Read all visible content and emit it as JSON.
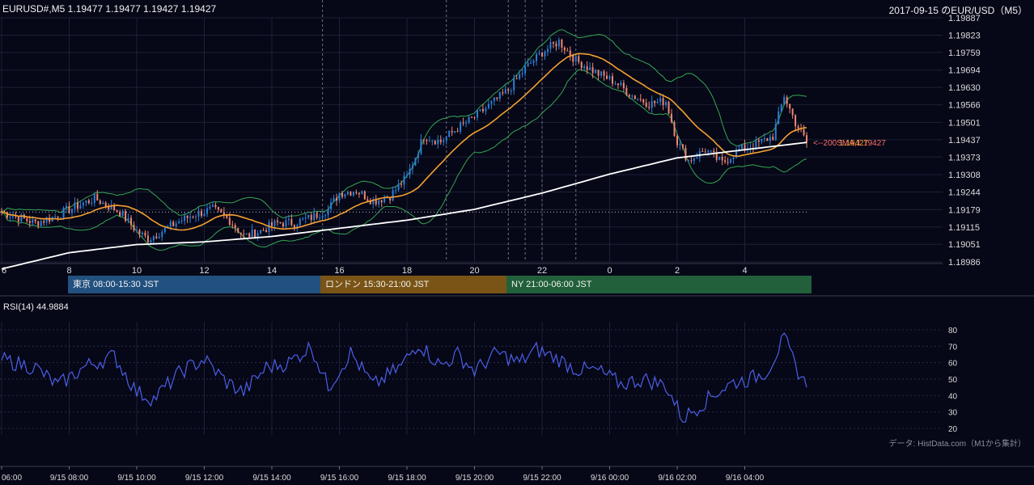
{
  "header": {
    "symbol_line": "EURUSD#,M5 1.19477 1.19477 1.19427 1.19427",
    "title_right": "2017-09-15 のEUR/USD（M5）"
  },
  "price_axis": {
    "labels": [
      "1.19887",
      "1.19823",
      "1.19759",
      "1.19694",
      "1.19630",
      "1.19566",
      "1.19501",
      "1.19437",
      "1.19373",
      "1.19308",
      "1.19244",
      "1.19179",
      "1.19115",
      "1.19051",
      "1.18986"
    ],
    "min": 1.18986,
    "max": 1.19887
  },
  "time_axis_top": [
    "6",
    "8",
    "10",
    "12",
    "14",
    "16",
    "18",
    "20",
    "22",
    "0",
    "2",
    "4"
  ],
  "time_axis_bottom": [
    "06:00",
    "9/15 08:00",
    "9/15 10:00",
    "9/15 12:00",
    "9/15 14:00",
    "9/15 16:00",
    "9/15 18:00",
    "9/15 20:00",
    "9/15 22:00",
    "9/16 00:00",
    "9/16 02:00",
    "9/16 04:00"
  ],
  "sessions": {
    "tokyo": "東京 08:00-15:30 JST",
    "london": "ロンドン 15:30-21:00 JST",
    "ny": "NY 21:00-06:00 JST"
  },
  "ma_label": "<--200SMA,1.19427",
  "last_price_label": "1.19427",
  "rsi": {
    "label": "RSI(14) 44.9884",
    "axis_labels": [
      "80",
      "70",
      "60",
      "50",
      "40",
      "30",
      "20"
    ],
    "min": 20,
    "max": 80
  },
  "credit": "データ: HistData.com（M1から集計）",
  "colors": {
    "background": "#060717",
    "bull": "#2d7fd6",
    "bear": "#f08872",
    "bollinger": "#33a852",
    "sma20": "#f5a02e",
    "sma200": "#ffffff",
    "rsi": "#4c5fe8",
    "tokyo": "#22507f",
    "london": "#7a5416",
    "ny": "#21603a"
  },
  "chart_data": {
    "type": "candlestick",
    "symbol": "EURUSD",
    "timeframe": "M5",
    "last": {
      "open": 1.19477,
      "high": 1.19477,
      "low": 1.19427,
      "close": 1.19427
    },
    "x_start": "9/15 06:00",
    "x_end": "9/16 05:50",
    "ylim": [
      1.18986,
      1.19887
    ],
    "close_anchors": [
      [
        "06:00",
        1.1917
      ],
      [
        "07:00",
        1.1913
      ],
      [
        "07:30",
        1.1915
      ],
      [
        "08:00",
        1.1918
      ],
      [
        "08:45",
        1.1922
      ],
      [
        "09:30",
        1.1917
      ],
      [
        "10:00",
        1.191
      ],
      [
        "10:20",
        1.1907
      ],
      [
        "10:45",
        1.191
      ],
      [
        "11:10",
        1.1913
      ],
      [
        "11:40",
        1.1916
      ],
      [
        "12:15",
        1.1918
      ],
      [
        "12:45",
        1.1914
      ],
      [
        "13:10",
        1.1908
      ],
      [
        "13:40",
        1.191
      ],
      [
        "14:10",
        1.1913
      ],
      [
        "14:40",
        1.1913
      ],
      [
        "15:10",
        1.1915
      ],
      [
        "15:40",
        1.1918
      ],
      [
        "16:00",
        1.1924
      ],
      [
        "16:30",
        1.1925
      ],
      [
        "17:00",
        1.1921
      ],
      [
        "17:30",
        1.1923
      ],
      [
        "18:00",
        1.193
      ],
      [
        "18:30",
        1.1945
      ],
      [
        "19:00",
        1.1943
      ],
      [
        "19:30",
        1.1948
      ],
      [
        "20:00",
        1.1952
      ],
      [
        "20:30",
        1.1957
      ],
      [
        "21:00",
        1.1962
      ],
      [
        "21:30",
        1.197
      ],
      [
        "22:00",
        1.1976
      ],
      [
        "22:30",
        1.198
      ],
      [
        "23:00",
        1.1973
      ],
      [
        "23:40",
        1.1968
      ],
      [
        "00:10",
        1.1965
      ],
      [
        "00:40",
        1.196
      ],
      [
        "01:10",
        1.1957
      ],
      [
        "01:40",
        1.1958
      ],
      [
        "02:00",
        1.1943
      ],
      [
        "02:20",
        1.1936
      ],
      [
        "02:50",
        1.194
      ],
      [
        "03:20",
        1.1935
      ],
      [
        "03:50",
        1.194
      ],
      [
        "04:20",
        1.1942
      ],
      [
        "04:50",
        1.1945
      ],
      [
        "05:10",
        1.196
      ],
      [
        "05:30",
        1.195
      ],
      [
        "05:50",
        1.19427
      ]
    ],
    "sma200_anchors": [
      [
        "06:00",
        1.1896
      ],
      [
        "08:00",
        1.1902
      ],
      [
        "10:00",
        1.1905
      ],
      [
        "12:00",
        1.1906
      ],
      [
        "14:00",
        1.1908
      ],
      [
        "16:00",
        1.1911
      ],
      [
        "18:00",
        1.1914
      ],
      [
        "20:00",
        1.1918
      ],
      [
        "22:00",
        1.1924
      ],
      [
        "00:00",
        1.1931
      ],
      [
        "02:00",
        1.1937
      ],
      [
        "04:00",
        1.194
      ],
      [
        "05:50",
        1.19427
      ]
    ],
    "rsi_anchors": [
      [
        "06:00",
        62
      ],
      [
        "07:00",
        57
      ],
      [
        "07:40",
        46
      ],
      [
        "08:30",
        58
      ],
      [
        "09:20",
        64
      ],
      [
        "10:00",
        42
      ],
      [
        "10:30",
        38
      ],
      [
        "11:20",
        55
      ],
      [
        "12:00",
        62
      ],
      [
        "12:40",
        48
      ],
      [
        "13:10",
        42
      ],
      [
        "13:50",
        57
      ],
      [
        "14:30",
        60
      ],
      [
        "15:10",
        70
      ],
      [
        "15:40",
        45
      ],
      [
        "16:20",
        66
      ],
      [
        "17:00",
        46
      ],
      [
        "17:50",
        58
      ],
      [
        "18:20",
        72
      ],
      [
        "19:00",
        58
      ],
      [
        "19:30",
        65
      ],
      [
        "20:00",
        55
      ],
      [
        "20:40",
        66
      ],
      [
        "21:20",
        60
      ],
      [
        "21:50",
        68
      ],
      [
        "22:30",
        62
      ],
      [
        "23:00",
        56
      ],
      [
        "23:40",
        55
      ],
      [
        "00:20",
        47
      ],
      [
        "01:00",
        50
      ],
      [
        "01:40",
        46
      ],
      [
        "02:10",
        26
      ],
      [
        "02:40",
        34
      ],
      [
        "03:10",
        42
      ],
      [
        "03:40",
        48
      ],
      [
        "04:10",
        50
      ],
      [
        "04:40",
        55
      ],
      [
        "05:10",
        75
      ],
      [
        "05:30",
        58
      ],
      [
        "05:50",
        45
      ]
    ],
    "rsi_last": 44.9884,
    "annotations": [
      "<--200SMA,1.19427"
    ]
  }
}
